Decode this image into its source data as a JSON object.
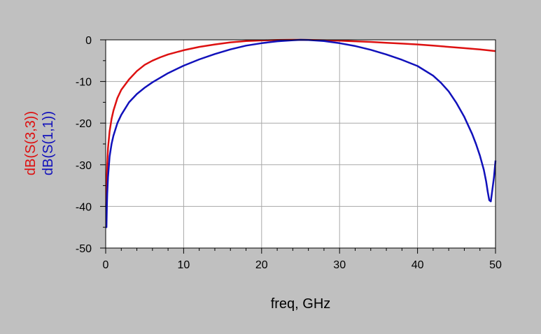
{
  "chart_data": {
    "type": "line",
    "xlabel": "freq, GHz",
    "ylabels": [
      {
        "text": "dB(S(3,3))",
        "color": "#dd1111"
      },
      {
        "text": "dB(S(1,1))",
        "color": "#1111bb"
      }
    ],
    "xlim": [
      0,
      50
    ],
    "ylim": [
      -50,
      0
    ],
    "x_ticks": [
      "0",
      "10",
      "20",
      "30",
      "40",
      "50"
    ],
    "y_ticks": [
      "0",
      "-10",
      "-20",
      "-30",
      "-40",
      "-50"
    ],
    "grid": true,
    "background": "#c0c0c0",
    "plot_background": "#ffffff",
    "series": [
      {
        "color": "#dd1111",
        "x": [
          0.05,
          0.1,
          0.2,
          0.3,
          0.5,
          0.75,
          1,
          1.5,
          2,
          3,
          4,
          5,
          6,
          7,
          8,
          10,
          12,
          14,
          16,
          18,
          20,
          22,
          24,
          25,
          26,
          28,
          30,
          32,
          34,
          36,
          38,
          40,
          42,
          44,
          46,
          48,
          50
        ],
        "y": [
          -40,
          -36,
          -30,
          -26,
          -22,
          -19,
          -17,
          -14,
          -12,
          -9.5,
          -7.5,
          -6,
          -5,
          -4.2,
          -3.5,
          -2.5,
          -1.7,
          -1.1,
          -0.6,
          -0.3,
          -0.15,
          -0.05,
          0,
          0,
          -0.02,
          -0.1,
          -0.2,
          -0.35,
          -0.5,
          -0.7,
          -0.9,
          -1.1,
          -1.4,
          -1.7,
          -2.0,
          -2.3,
          -2.7
        ]
      },
      {
        "color": "#1111bb",
        "x": [
          0.05,
          0.1,
          0.15,
          0.2,
          0.3,
          0.5,
          0.75,
          1,
          1.5,
          2,
          3,
          4,
          5,
          6,
          8,
          10,
          12,
          14,
          16,
          18,
          20,
          22,
          24,
          25,
          26,
          28,
          30,
          32,
          34,
          36,
          38,
          40,
          42,
          43,
          44,
          45,
          46,
          47,
          47.5,
          48,
          48.5,
          48.8,
          49,
          49.2,
          49.4,
          49.6,
          49.8,
          50
        ],
        "y": [
          -45,
          -45,
          -40,
          -37,
          -33,
          -28,
          -25,
          -23,
          -20,
          -18,
          -15,
          -13,
          -11.5,
          -10.2,
          -8,
          -6.2,
          -4.7,
          -3.4,
          -2.3,
          -1.4,
          -0.8,
          -0.35,
          -0.1,
          0,
          -0.05,
          -0.3,
          -0.8,
          -1.5,
          -2.4,
          -3.5,
          -4.8,
          -6.3,
          -8.6,
          -10.3,
          -12.4,
          -15.2,
          -18.5,
          -22.6,
          -25,
          -27.8,
          -31.2,
          -34,
          -36.5,
          -38.5,
          -38.8,
          -36,
          -33,
          -29
        ]
      }
    ]
  }
}
